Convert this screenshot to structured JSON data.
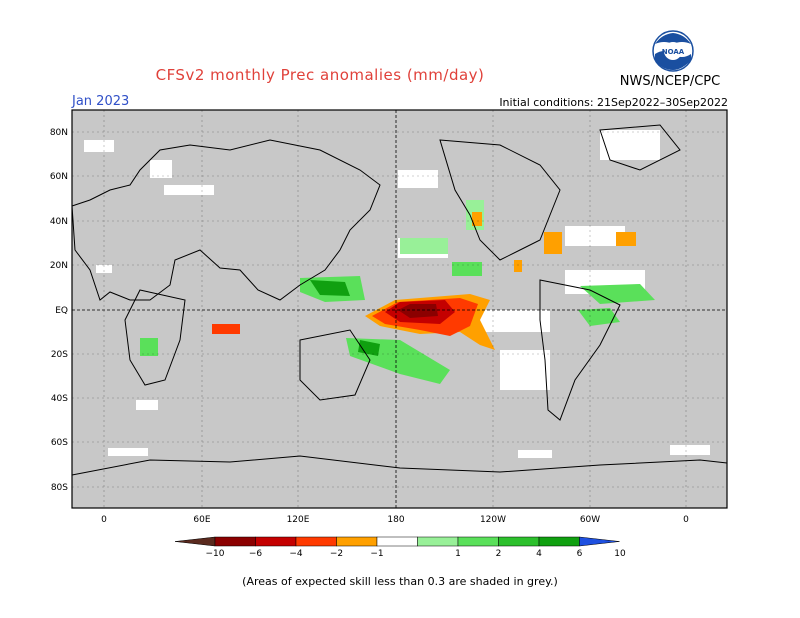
{
  "header": {
    "title": "CFSv2 monthly Prec anomalies (mm/day)",
    "month": "Jan 2023",
    "initial_conditions": "Initial conditions: 21Sep2022–30Sep2022",
    "org": "NWS/NCEP/CPC",
    "logo_text": "NOAA"
  },
  "map": {
    "lat_labels": [
      "80N",
      "60N",
      "40N",
      "20N",
      "EQ",
      "20S",
      "40S",
      "60S",
      "80S"
    ],
    "lon_labels": [
      "0",
      "60E",
      "120E",
      "180",
      "120W",
      "60W",
      "0"
    ],
    "skill_shade_color": "#c8c8c8"
  },
  "legend": {
    "labels": [
      "−10",
      "−6",
      "−4",
      "−2",
      "−1",
      "1",
      "2",
      "4",
      "6",
      "10"
    ],
    "colors": [
      "#5a2a1e",
      "#8b0000",
      "#c40000",
      "#ff3a00",
      "#ffa000",
      "#ffffff",
      "#98f098",
      "#5ae05a",
      "#2cc02c",
      "#10a010",
      "#1e50e0"
    ]
  },
  "footer": {
    "note": "(Areas of expected skill less than 0.3 are shaded in grey.)"
  }
}
